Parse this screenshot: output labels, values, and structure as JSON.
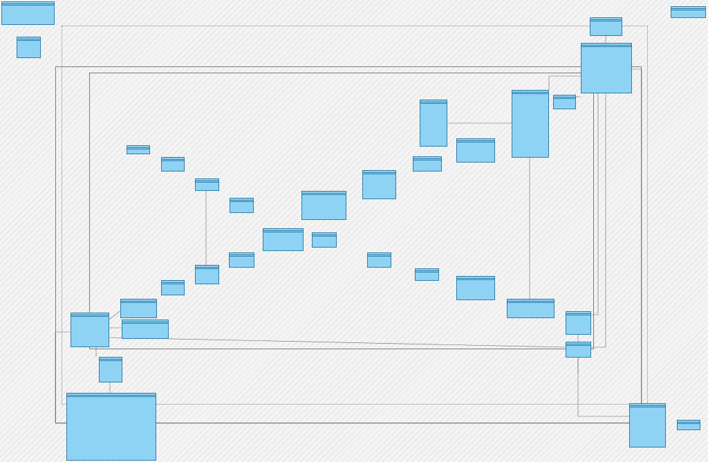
{
  "diagram": {
    "accent_color": "#8fd3f4",
    "border_color": "#2e7ca8",
    "line_color": "#666666",
    "classes": [
      {
        "id": "c_tl",
        "stereotype": "",
        "name": "",
        "attributes": [],
        "methods": []
      },
      {
        "id": "c_tl2",
        "stereotype": "",
        "name": "",
        "attributes": [],
        "methods": []
      },
      {
        "id": "c_trsmall",
        "stereotype": "",
        "name": "",
        "attributes": [],
        "methods": []
      },
      {
        "id": "c_topright",
        "stereotype": "",
        "name": "",
        "attributes": [],
        "methods": []
      },
      {
        "id": "c_rightbig",
        "stereotype": "",
        "name": "",
        "attributes": [],
        "methods": []
      },
      {
        "id": "c_mid1",
        "stereotype": "",
        "name": "",
        "attributes": [],
        "methods": []
      },
      {
        "id": "c_mid2",
        "stereotype": "",
        "name": "",
        "attributes": [],
        "methods": []
      },
      {
        "id": "c_mid3",
        "stereotype": "",
        "name": "",
        "attributes": [],
        "methods": []
      },
      {
        "id": "c_mid4",
        "stereotype": "",
        "name": "",
        "attributes": [],
        "methods": []
      },
      {
        "id": "c_mid5",
        "stereotype": "",
        "name": "",
        "attributes": [],
        "methods": []
      },
      {
        "id": "c_mid6",
        "stereotype": "",
        "name": "",
        "attributes": [],
        "methods": []
      },
      {
        "id": "c_mid7",
        "stereotype": "",
        "name": "",
        "attributes": [],
        "methods": []
      },
      {
        "id": "c_mid8",
        "stereotype": "",
        "name": "",
        "attributes": [],
        "methods": []
      },
      {
        "id": "c_mid9",
        "stereotype": "",
        "name": "",
        "attributes": [],
        "methods": []
      },
      {
        "id": "c_mid10",
        "stereotype": "",
        "name": "",
        "attributes": [],
        "methods": []
      },
      {
        "id": "c_mid11",
        "stereotype": "",
        "name": "",
        "attributes": [],
        "methods": []
      },
      {
        "id": "c_mid12",
        "stereotype": "",
        "name": "",
        "attributes": [],
        "methods": []
      },
      {
        "id": "c_mid13",
        "stereotype": "",
        "name": "",
        "attributes": [],
        "methods": []
      },
      {
        "id": "c_mid14",
        "stereotype": "",
        "name": "",
        "attributes": [],
        "methods": []
      },
      {
        "id": "c_mid15",
        "stereotype": "",
        "name": "",
        "attributes": [],
        "methods": []
      },
      {
        "id": "c_mid16",
        "stereotype": "",
        "name": "",
        "attributes": [],
        "methods": []
      },
      {
        "id": "c_mid17",
        "stereotype": "",
        "name": "",
        "attributes": [],
        "methods": []
      },
      {
        "id": "c_mid18",
        "stereotype": "",
        "name": "",
        "attributes": [],
        "methods": []
      },
      {
        "id": "c_mid19",
        "stereotype": "",
        "name": "",
        "attributes": [],
        "methods": []
      },
      {
        "id": "c_mid20",
        "stereotype": "",
        "name": "",
        "attributes": [],
        "methods": []
      },
      {
        "id": "c_mid21",
        "stereotype": "",
        "name": "",
        "attributes": [],
        "methods": []
      },
      {
        "id": "c_mid22",
        "stereotype": "",
        "name": "",
        "attributes": [],
        "methods": []
      },
      {
        "id": "c_mid23",
        "stereotype": "",
        "name": "",
        "attributes": [],
        "methods": []
      },
      {
        "id": "c_mid24",
        "stereotype": "",
        "name": "",
        "attributes": [],
        "methods": []
      },
      {
        "id": "c_mid25",
        "stereotype": "",
        "name": "",
        "attributes": [],
        "methods": []
      },
      {
        "id": "c_left1",
        "stereotype": "",
        "name": "",
        "attributes": [],
        "methods": []
      },
      {
        "id": "c_left2",
        "stereotype": "",
        "name": "",
        "attributes": [],
        "methods": []
      },
      {
        "id": "c_bottomleft",
        "stereotype": "",
        "name": "",
        "attributes": [],
        "methods": []
      },
      {
        "id": "c_bottomright",
        "stereotype": "",
        "name": "",
        "attributes": [],
        "methods": []
      },
      {
        "id": "c_brsmall",
        "stereotype": "",
        "name": "",
        "attributes": [],
        "methods": []
      }
    ]
  }
}
